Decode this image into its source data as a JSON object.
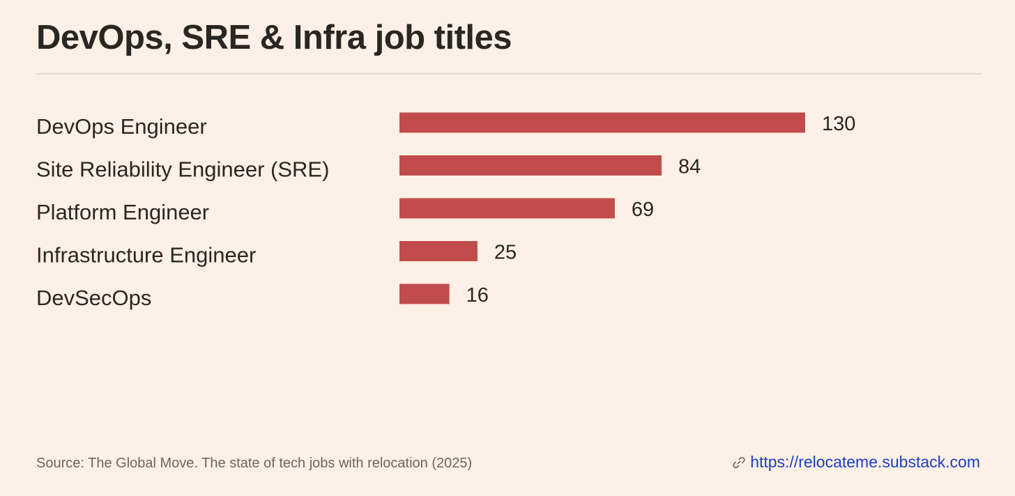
{
  "colors": {
    "background": "#fdf0e6",
    "bar": "#c14c4c",
    "divider": "#e2dbd3",
    "link": "#1b3fc4"
  },
  "chart_data": {
    "type": "bar",
    "orientation": "horizontal",
    "title": "DevOps, SRE & Infra job titles",
    "categories": [
      "DevOps Engineer",
      "Site Reliability Engineer (SRE)",
      "Platform Engineer",
      "Infrastructure Engineer",
      "DevSecOps"
    ],
    "values": [
      130,
      84,
      69,
      25,
      16
    ],
    "xlim": [
      0,
      130
    ],
    "grid": false,
    "legend": "none"
  },
  "footer": {
    "source": "Source: The Global Move. The state of tech jobs with relocation (2025)",
    "link_icon": "link-icon",
    "link_text": "https://relocateme.substack.com"
  }
}
